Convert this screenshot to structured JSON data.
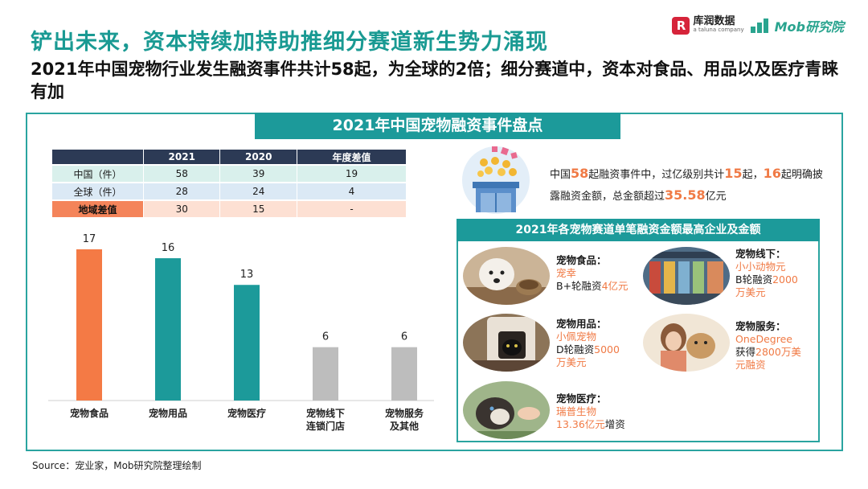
{
  "header": {
    "title": "铲出未来，资本持续加持助推细分赛道新生势力涌现",
    "subtitle": "2021年中国宠物行业发生融资事件共计58起，为全球的2倍；细分赛道中，资本对食品、用品以及医疗青睐有加"
  },
  "logos": {
    "kr_mark": "R",
    "kr_name": "库润数据",
    "kr_sub": "a taluna company",
    "mob_name": "Mob研究院"
  },
  "section_title": "2021年中国宠物融资事件盘点",
  "table": {
    "headers": [
      "",
      "2021",
      "2020",
      "年度差值"
    ],
    "rows": [
      {
        "label": "中国（件）",
        "v2021": "58",
        "v2020": "39",
        "diff": "19"
      },
      {
        "label": "全球（件）",
        "v2021": "28",
        "v2020": "24",
        "diff": "4"
      },
      {
        "label": "地域差值",
        "v2021": "30",
        "v2020": "15",
        "diff": "-"
      }
    ]
  },
  "chart_data": {
    "type": "bar",
    "categories": [
      "宠物食品",
      "宠物用品",
      "宠物医疗",
      "宠物线下连锁门店",
      "宠物服务及其他"
    ],
    "category_lines": [
      [
        "宠物食品"
      ],
      [
        "宠物用品"
      ],
      [
        "宠物医疗"
      ],
      [
        "宠物线下",
        "连锁门店"
      ],
      [
        "宠物服务",
        "及其他"
      ]
    ],
    "values": [
      17,
      16,
      13,
      6,
      6
    ],
    "colors": [
      "#f47a45",
      "#1c9a9a",
      "#1c9a9a",
      "#bdbdbd",
      "#bdbdbd"
    ],
    "ylim": [
      0,
      17
    ],
    "grid": false,
    "xlabel": "",
    "ylabel": ""
  },
  "summary": {
    "t1": "中国",
    "n1": "58",
    "t2": "起融资事件中，过亿级别共计",
    "n2": "15",
    "t3": "起，",
    "n3": "16",
    "t4": "起明确披露融资金额，总金额超过",
    "n4": "35.58",
    "t5": "亿元"
  },
  "sub_title": "2021年各宠物赛道单笔融资金额最高企业及金额",
  "items": [
    {
      "category": "宠物食品：",
      "company": "宠幸",
      "deal_a": "B+轮融资",
      "deal_b": "4亿元",
      "deal_c": ""
    },
    {
      "category": "宠物线下：",
      "company": "小小动物元",
      "deal_a": "B轮融资",
      "deal_b": "2000",
      "deal_c": "万美元"
    },
    {
      "category": "宠物用品：",
      "company": "小佩宠物",
      "deal_a": "D轮融资",
      "deal_b": "5000",
      "deal_c": "万美元"
    },
    {
      "category": "宠物服务：",
      "company": "OneDegree",
      "deal_a": "获得",
      "deal_b": "2800万美",
      "deal_c": "元融资"
    },
    {
      "category": "宠物医疗：",
      "company": "瑞普生物",
      "deal_a": "",
      "deal_b": "13.36亿元",
      "deal_c": "增资"
    }
  ],
  "source": "Source：宠业家，Mob研究院整理绘制"
}
